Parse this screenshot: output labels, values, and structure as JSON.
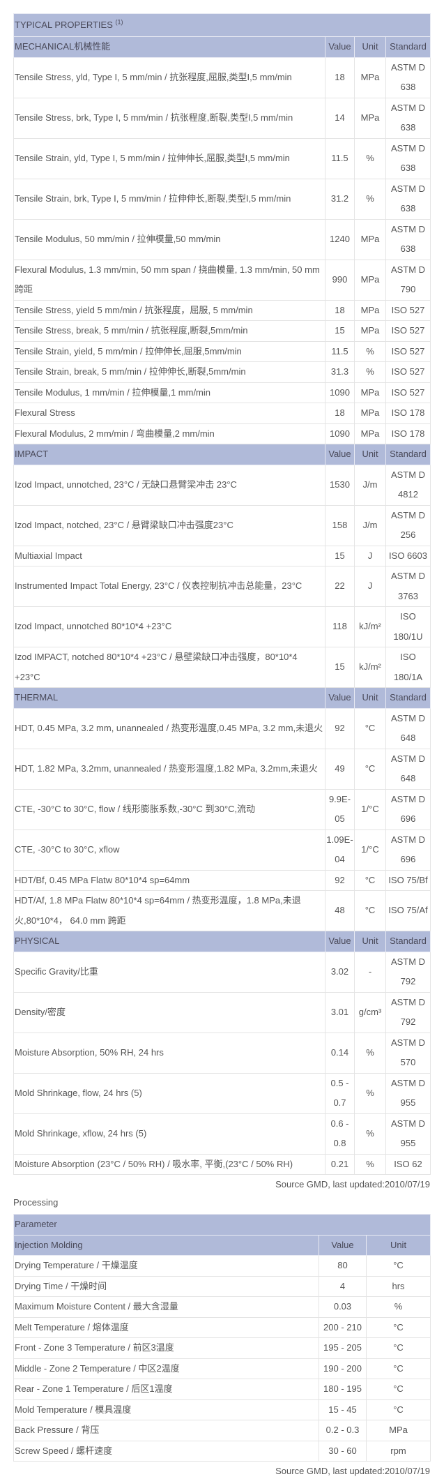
{
  "properties": {
    "title": "TYPICAL PROPERTIES",
    "title_note": "(1)",
    "header_color": "#b0bad9",
    "sections": [
      {
        "name": "MECHANICAL机械性能",
        "columns": [
          "Value",
          "Unit",
          "Standard"
        ],
        "rows": [
          {
            "property": "Tensile Stress, yld, Type I, 5 mm/min / 抗张程度,屈服,类型I,5 mm/min",
            "value": "18",
            "unit": "MPa",
            "standard": "ASTM D 638"
          },
          {
            "property": "Tensile Stress, brk, Type I, 5 mm/min / 抗张程度,断裂,类型I,5 mm/min",
            "value": "14",
            "unit": "MPa",
            "standard": "ASTM D 638"
          },
          {
            "property": "Tensile Strain, yld, Type I, 5 mm/min / 拉伸伸长,屈服,类型I,5 mm/min",
            "value": "11.5",
            "unit": "%",
            "standard": "ASTM D 638"
          },
          {
            "property": "Tensile Strain, brk, Type I, 5 mm/min / 拉伸伸长,断裂,类型I,5 mm/min",
            "value": "31.2",
            "unit": "%",
            "standard": "ASTM D 638"
          },
          {
            "property": "Tensile Modulus, 50 mm/min / 拉伸模量,50 mm/min",
            "value": "1240",
            "unit": "MPa",
            "standard": "ASTM D 638"
          },
          {
            "property": "Flexural Modulus, 1.3 mm/min, 50 mm span / 挠曲模量, 1.3 mm/min, 50 mm 跨距",
            "value": "990",
            "unit": "MPa",
            "standard": "ASTM D 790"
          },
          {
            "property": "Tensile Stress, yield 5 mm/min / 抗张程度，屈服, 5 mm/min",
            "value": "18",
            "unit": "MPa",
            "standard": "ISO 527"
          },
          {
            "property": "Tensile Stress, break, 5 mm/min / 抗张程度,断裂,5mm/min",
            "value": "15",
            "unit": "MPa",
            "standard": "ISO 527"
          },
          {
            "property": "Tensile Strain, yield, 5 mm/min / 拉伸伸长,屈服,5mm/min",
            "value": "11.5",
            "unit": "%",
            "standard": "ISO 527"
          },
          {
            "property": "Tensile Strain, break, 5 mm/min / 拉伸伸长,断裂,5mm/min",
            "value": "31.3",
            "unit": "%",
            "standard": "ISO 527"
          },
          {
            "property": "Tensile Modulus, 1 mm/min / 拉伸模量,1 mm/min",
            "value": "1090",
            "unit": "MPa",
            "standard": "ISO 527"
          },
          {
            "property": "Flexural Stress",
            "value": "18",
            "unit": "MPa",
            "standard": "ISO 178"
          },
          {
            "property": "Flexural Modulus, 2 mm/min / 弯曲模量,2 mm/min",
            "value": "1090",
            "unit": "MPa",
            "standard": "ISO 178"
          }
        ]
      },
      {
        "name": "IMPACT",
        "columns": [
          "Value",
          "Unit",
          "Standard"
        ],
        "rows": [
          {
            "property": "Izod Impact, unnotched, 23°C / 无缺口悬臂梁冲击 23°C",
            "value": "1530",
            "unit": "J/m",
            "standard": "ASTM D 4812"
          },
          {
            "property": "Izod Impact, notched, 23°C / 悬臂梁缺口冲击强度23°C",
            "value": "158",
            "unit": "J/m",
            "standard": "ASTM D 256"
          },
          {
            "property": "Multiaxial Impact",
            "value": "15",
            "unit": "J",
            "standard": "ISO 6603"
          },
          {
            "property": "Instrumented Impact Total Energy, 23°C / 仪表控制抗冲击总能量，23°C",
            "value": "22",
            "unit": "J",
            "standard": "ASTM D 3763"
          },
          {
            "property": "Izod Impact, unnotched 80*10*4 +23°C",
            "value": "118",
            "unit": "kJ/m²",
            "standard": "ISO 180/1U"
          },
          {
            "property": "Izod IMPACT, notched 80*10*4 +23°C / 悬壁梁缺口冲击强度，80*10*4 +23°C",
            "value": "15",
            "unit": "kJ/m²",
            "standard": "ISO 180/1A"
          }
        ]
      },
      {
        "name": "THERMAL",
        "columns": [
          "Value",
          "Unit",
          "Standard"
        ],
        "rows": [
          {
            "property": "HDT, 0.45 MPa, 3.2 mm, unannealed / 热变形温度,0.45 MPa, 3.2 mm,未退火",
            "value": "92",
            "unit": "°C",
            "standard": "ASTM D 648"
          },
          {
            "property": "HDT, 1.82 MPa, 3.2mm, unannealed / 热变形温度,1.82 MPa, 3.2mm,未退火",
            "value": "49",
            "unit": "°C",
            "standard": "ASTM D 648"
          },
          {
            "property": "CTE, -30°C to 30°C, flow / 线形膨胀系数,-30°C 到30°C,流动",
            "value": "9.9E-05",
            "unit": "1/°C",
            "standard": "ASTM D 696"
          },
          {
            "property": "CTE, -30°C to 30°C, xflow",
            "value": "1.09E-04",
            "unit": "1/°C",
            "standard": "ASTM D 696"
          },
          {
            "property": "HDT/Bf, 0.45 MPa Flatw 80*10*4 sp=64mm",
            "value": "92",
            "unit": "°C",
            "standard": "ISO 75/Bf"
          },
          {
            "property": "HDT/Af, 1.8 MPa Flatw 80*10*4 sp=64mm / 热变形温度，1.8 MPa,未退火,80*10*4， 64.0 mm 跨距",
            "value": "48",
            "unit": "°C",
            "standard": "ISO 75/Af"
          }
        ]
      },
      {
        "name": "PHYSICAL",
        "columns": [
          "Value",
          "Unit",
          "Standard"
        ],
        "rows": [
          {
            "property": "Specific Gravity/比重",
            "value": "3.02",
            "unit": "-",
            "standard": "ASTM D 792"
          },
          {
            "property": "Density/密度",
            "value": "3.01",
            "unit": "g/cm³",
            "standard": "ASTM D 792"
          },
          {
            "property": "Moisture Absorption, 50% RH, 24 hrs",
            "value": "0.14",
            "unit": "%",
            "standard": "ASTM D 570"
          },
          {
            "property": "Mold Shrinkage, flow, 24 hrs (5)",
            "value": "0.5 - 0.7",
            "unit": "%",
            "standard": "ASTM D 955"
          },
          {
            "property": "Mold Shrinkage, xflow, 24 hrs (5)",
            "value": "0.6 - 0.8",
            "unit": "%",
            "standard": "ASTM D 955"
          },
          {
            "property": "Moisture Absorption (23°C / 50% RH) / 吸水率, 平衡,(23°C / 50% RH)",
            "value": "0.21",
            "unit": "%",
            "standard": "ISO 62"
          }
        ]
      }
    ],
    "source": "Source GMD, last updated:2010/07/19"
  },
  "processing": {
    "heading": "Processing",
    "title": "Parameter",
    "section": "Injection Molding",
    "columns": [
      "Value",
      "Unit"
    ],
    "rows": [
      {
        "parameter": "Drying Temperature / 干燥温度",
        "value": "80",
        "unit": "°C"
      },
      {
        "parameter": "Drying Time / 干燥时间",
        "value": "4",
        "unit": "hrs"
      },
      {
        "parameter": "Maximum Moisture Content / 最大含湿量",
        "value": "0.03",
        "unit": "%"
      },
      {
        "parameter": "Melt Temperature / 熔体温度",
        "value": "200 - 210",
        "unit": "°C"
      },
      {
        "parameter": "Front - Zone 3 Temperature / 前区3温度",
        "value": "195 - 205",
        "unit": "°C"
      },
      {
        "parameter": "Middle - Zone 2 Temperature / 中区2温度",
        "value": "190 - 200",
        "unit": "°C"
      },
      {
        "parameter": "Rear - Zone 1 Temperature / 后区1温度",
        "value": "180 - 195",
        "unit": "°C"
      },
      {
        "parameter": "Mold Temperature / 模具温度",
        "value": "15 - 45",
        "unit": "°C"
      },
      {
        "parameter": "Back Pressure / 背压",
        "value": "0.2 - 0.3",
        "unit": "MPa"
      },
      {
        "parameter": "Screw Speed / 螺杆速度",
        "value": "30 - 60",
        "unit": "rpm"
      }
    ],
    "source": "Source GMD, last updated:2010/07/19"
  }
}
